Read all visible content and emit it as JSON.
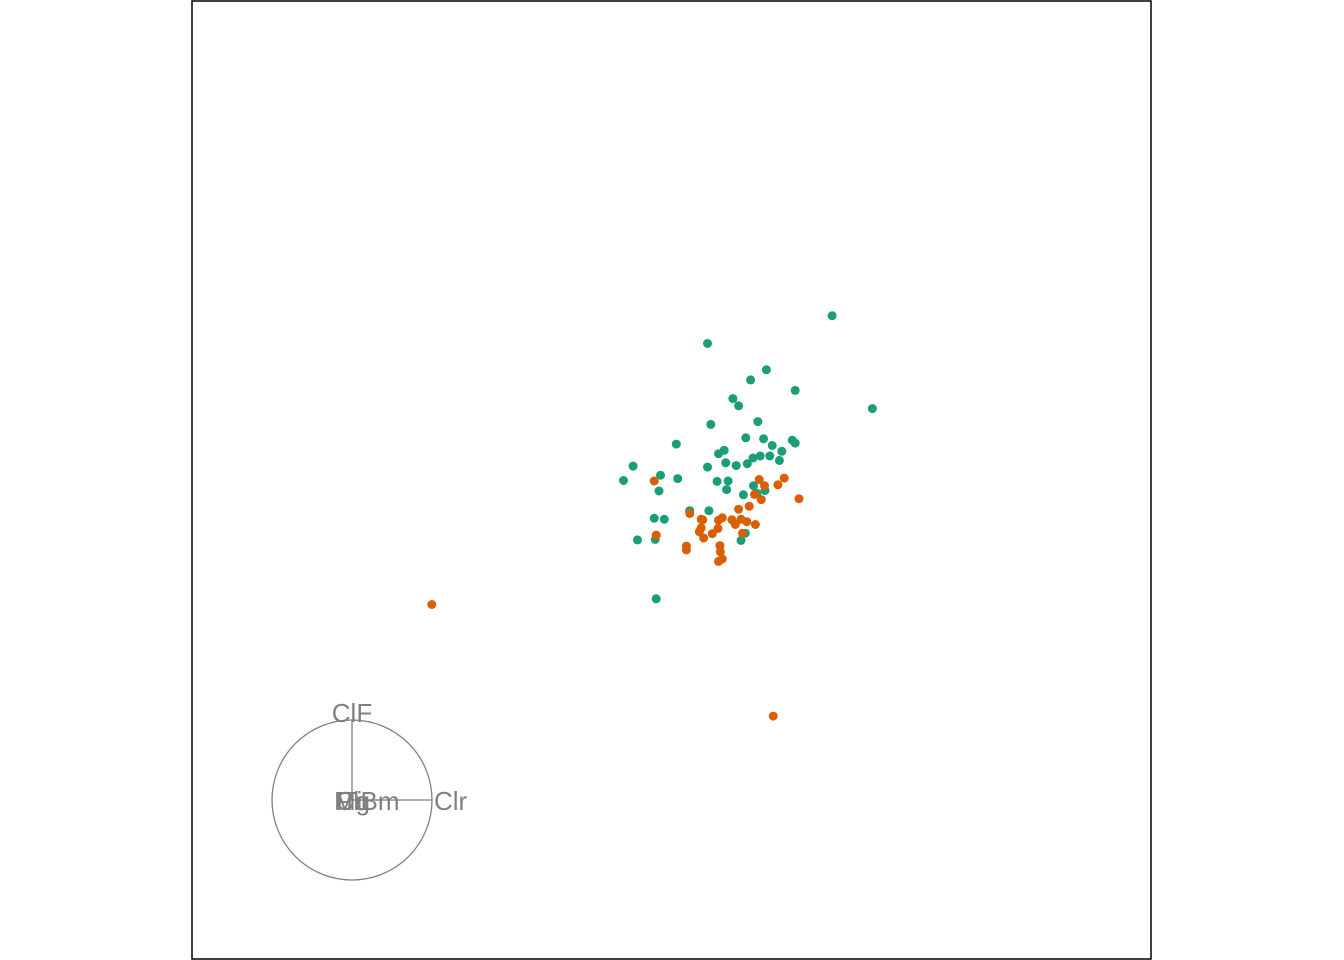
{
  "chart_data": {
    "type": "scatter",
    "title": "",
    "xlabel": "",
    "ylabel": "",
    "xlim": [
      -1,
      1
    ],
    "ylim": [
      -1,
      1
    ],
    "grid": false,
    "legend": "none",
    "colors": {
      "group_a": "#1b9e77",
      "group_b": "#d95f02",
      "axes": "#808080",
      "frame": "#000000"
    },
    "series": [
      {
        "color": "#1b9e77",
        "points": [
          [
            0.335,
            0.343
          ],
          [
            0.419,
            0.149
          ],
          [
            0.075,
            0.285
          ],
          [
            0.165,
            0.209
          ],
          [
            0.198,
            0.23
          ],
          [
            0.258,
            0.187
          ],
          [
            0.128,
            0.17
          ],
          [
            0.14,
            0.155
          ],
          [
            0.082,
            0.116
          ],
          [
            0.18,
            0.122
          ],
          [
            0.192,
            0.086
          ],
          [
            0.01,
            0.075
          ],
          [
            0.11,
            0.062
          ],
          [
            0.155,
            0.088
          ],
          [
            0.21,
            0.072
          ],
          [
            0.23,
            0.06
          ],
          [
            0.252,
            0.083
          ],
          [
            0.258,
            0.077
          ],
          [
            0.17,
            0.046
          ],
          [
            0.185,
            0.05
          ],
          [
            0.205,
            0.05
          ],
          [
            0.225,
            0.041
          ],
          [
            0.098,
            0.055
          ],
          [
            0.113,
            0.036
          ],
          [
            0.135,
            0.03
          ],
          [
            -0.08,
            0.029
          ],
          [
            -0.023,
            0.01
          ],
          [
            0.075,
            0.027
          ],
          [
            0.158,
            0.034
          ],
          [
            -0.1,
            -0.001
          ],
          [
            -0.026,
            -0.023
          ],
          [
            0.013,
            0.003
          ],
          [
            0.095,
            -0.003
          ],
          [
            0.115,
            -0.02
          ],
          [
            0.15,
            -0.031
          ],
          [
            0.178,
            -0.028
          ],
          [
            0.195,
            -0.022
          ],
          [
            -0.036,
            -0.08
          ],
          [
            -0.015,
            -0.082
          ],
          [
            0.078,
            -0.064
          ],
          [
            0.038,
            -0.064
          ],
          [
            -0.071,
            -0.125
          ],
          [
            -0.034,
            -0.124
          ],
          [
            0.145,
            -0.126
          ],
          [
            0.154,
            -0.111
          ],
          [
            -0.032,
            -0.248
          ],
          [
            0.118,
            -0.002
          ],
          [
            0.171,
            -0.012
          ]
        ]
      },
      {
        "color": "#d95f02",
        "points": [
          [
            -0.036,
            -0.002
          ],
          [
            0.183,
            0.001
          ],
          [
            0.194,
            -0.012
          ],
          [
            0.222,
            -0.01
          ],
          [
            0.235,
            0.004
          ],
          [
            0.266,
            -0.039
          ],
          [
            0.173,
            -0.03
          ],
          [
            0.187,
            -0.041
          ],
          [
            0.14,
            -0.061
          ],
          [
            0.106,
            -0.079
          ],
          [
            0.175,
            -0.093
          ],
          [
            0.126,
            -0.083
          ],
          [
            0.145,
            -0.082
          ],
          [
            0.157,
            -0.087
          ],
          [
            0.085,
            -0.112
          ],
          [
            0.065,
            -0.083
          ],
          [
            0.062,
            -0.1
          ],
          [
            0.058,
            -0.108
          ],
          [
            0.098,
            -0.084
          ],
          [
            0.148,
            -0.111
          ],
          [
            0.097,
            -0.101
          ],
          [
            0.101,
            -0.137
          ],
          [
            0.102,
            -0.15
          ],
          [
            0.067,
            -0.121
          ],
          [
            0.038,
            -0.07
          ],
          [
            0.062,
            -0.082
          ],
          [
            0.031,
            -0.138
          ],
          [
            0.031,
            -0.146
          ],
          [
            -0.032,
            -0.115
          ],
          [
            -0.5,
            -0.26
          ],
          [
            0.106,
            -0.165
          ],
          [
            0.098,
            -0.17
          ],
          [
            0.212,
            -0.493
          ],
          [
            0.133,
            -0.093
          ],
          [
            0.162,
            -0.055
          ]
        ]
      }
    ],
    "axes_guide": {
      "labels": [
        "ClF",
        "Clr",
        "Mg",
        "Pb",
        "Ti",
        "Cu",
        "Bm"
      ],
      "vectors": [
        [
          0,
          1
        ],
        [
          1,
          0
        ],
        [
          0,
          0
        ],
        [
          0,
          0
        ],
        [
          0,
          0
        ],
        [
          0,
          0
        ],
        [
          0.35,
          0
        ]
      ]
    }
  }
}
